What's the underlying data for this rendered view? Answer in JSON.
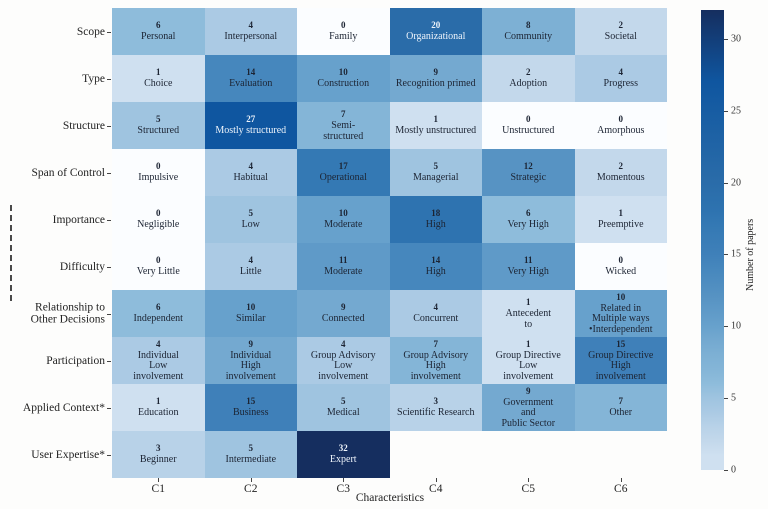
{
  "chart_data": {
    "type": "heatmap",
    "title": "",
    "xlabel": "Characteristics",
    "colorbar_label": "Number of papers",
    "colorbar_ticks": [
      0,
      5,
      10,
      15,
      20,
      25,
      30
    ],
    "vmin": 0,
    "vmax": 32,
    "legend_position": "right-colorbar",
    "grid": false,
    "columns": [
      "C1",
      "C2",
      "C3",
      "C4",
      "C5",
      "C6"
    ],
    "colormap_anchors": [
      [
        0,
        "#fbfdff"
      ],
      [
        1,
        "#cfe0f0"
      ],
      [
        2,
        "#c3d8eb"
      ],
      [
        3,
        "#b8d2e8"
      ],
      [
        4,
        "#abcae4"
      ],
      [
        5,
        "#9fc4e0"
      ],
      [
        6,
        "#8ebcdb"
      ],
      [
        7,
        "#84b5d7"
      ],
      [
        8,
        "#7db0d4"
      ],
      [
        9,
        "#74a9d0"
      ],
      [
        10,
        "#67a1cc"
      ],
      [
        11,
        "#5f9ac8"
      ],
      [
        12,
        "#5793c3"
      ],
      [
        14,
        "#4687bd"
      ],
      [
        15,
        "#3f80b9"
      ],
      [
        17,
        "#3479b4"
      ],
      [
        18,
        "#2e73b0"
      ],
      [
        20,
        "#2a6ca9"
      ],
      [
        27,
        "#0f56a0"
      ],
      [
        32,
        "#152e5f"
      ]
    ],
    "white_text_threshold": 20,
    "text_colors": {
      "dark": "#1c2433",
      "light": "#eef4fb"
    },
    "rows": [
      {
        "label": "Scope",
        "cells": [
          {
            "value": 6,
            "label": "Personal"
          },
          {
            "value": 4,
            "label": "Interpersonal"
          },
          {
            "value": 0,
            "label": "Family"
          },
          {
            "value": 20,
            "label": "Organizational"
          },
          {
            "value": 8,
            "label": "Community"
          },
          {
            "value": 2,
            "label": "Societal"
          }
        ]
      },
      {
        "label": "Type",
        "cells": [
          {
            "value": 1,
            "label": "Choice"
          },
          {
            "value": 14,
            "label": "Evaluation"
          },
          {
            "value": 10,
            "label": "Construction"
          },
          {
            "value": 9,
            "label": "Recognition primed"
          },
          {
            "value": 2,
            "label": "Adoption"
          },
          {
            "value": 4,
            "label": "Progress"
          }
        ]
      },
      {
        "label": "Structure",
        "cells": [
          {
            "value": 5,
            "label": "Structured"
          },
          {
            "value": 27,
            "label": "Mostly structured"
          },
          {
            "value": 7,
            "label": "Semi-\nstructured"
          },
          {
            "value": 1,
            "label": "Mostly unstructured"
          },
          {
            "value": 0,
            "label": "Unstructured"
          },
          {
            "value": 0,
            "label": "Amorphous"
          }
        ]
      },
      {
        "label": "Span of Control",
        "cells": [
          {
            "value": 0,
            "label": "Impulsive"
          },
          {
            "value": 4,
            "label": "Habitual"
          },
          {
            "value": 17,
            "label": "Operational"
          },
          {
            "value": 5,
            "label": "Managerial"
          },
          {
            "value": 12,
            "label": "Strategic"
          },
          {
            "value": 2,
            "label": "Momentous"
          }
        ]
      },
      {
        "label": "Importance",
        "cells": [
          {
            "value": 0,
            "label": "Negligible"
          },
          {
            "value": 5,
            "label": "Low"
          },
          {
            "value": 10,
            "label": "Moderate"
          },
          {
            "value": 18,
            "label": "High"
          },
          {
            "value": 6,
            "label": "Very High"
          },
          {
            "value": 1,
            "label": "Preemptive"
          }
        ]
      },
      {
        "label": "Difficulty",
        "cells": [
          {
            "value": 0,
            "label": "Very Little"
          },
          {
            "value": 4,
            "label": "Little"
          },
          {
            "value": 11,
            "label": "Moderate"
          },
          {
            "value": 14,
            "label": "High"
          },
          {
            "value": 11,
            "label": "Very High"
          },
          {
            "value": 0,
            "label": "Wicked"
          }
        ]
      },
      {
        "label": "Relationship to\nOther Decisions",
        "cells": [
          {
            "value": 6,
            "label": "Independent"
          },
          {
            "value": 10,
            "label": "Similar"
          },
          {
            "value": 9,
            "label": "Connected"
          },
          {
            "value": 4,
            "label": "Concurrent"
          },
          {
            "value": 1,
            "label": "Antecedent\nto"
          },
          {
            "value": 10,
            "label": "Related in\nMultiple ways\n•Interdependent"
          }
        ]
      },
      {
        "label": "Participation",
        "cells": [
          {
            "value": 4,
            "label": "Individual\nLow\ninvolvement"
          },
          {
            "value": 9,
            "label": "Individual\nHigh\ninvolvement"
          },
          {
            "value": 4,
            "label": "Group Advisory\nLow\ninvolvement"
          },
          {
            "value": 7,
            "label": "Group Advisory\nHigh\ninvolvement"
          },
          {
            "value": 1,
            "label": "Group Directive\nLow\ninvolvement"
          },
          {
            "value": 15,
            "label": "Group Directive\nHigh\ninvolvement"
          }
        ]
      },
      {
        "label": "Applied Context*",
        "cells": [
          {
            "value": 1,
            "label": "Education"
          },
          {
            "value": 15,
            "label": "Business"
          },
          {
            "value": 5,
            "label": "Medical"
          },
          {
            "value": 3,
            "label": "Scientific Research"
          },
          {
            "value": 9,
            "label": "Government\nand\nPublic Sector"
          },
          {
            "value": 7,
            "label": "Other"
          }
        ]
      },
      {
        "label": "User Expertise*",
        "cells": [
          {
            "value": 3,
            "label": "Beginner"
          },
          {
            "value": 5,
            "label": "Intermediate"
          },
          {
            "value": 32,
            "label": "Expert"
          },
          null,
          null,
          null
        ]
      }
    ]
  }
}
